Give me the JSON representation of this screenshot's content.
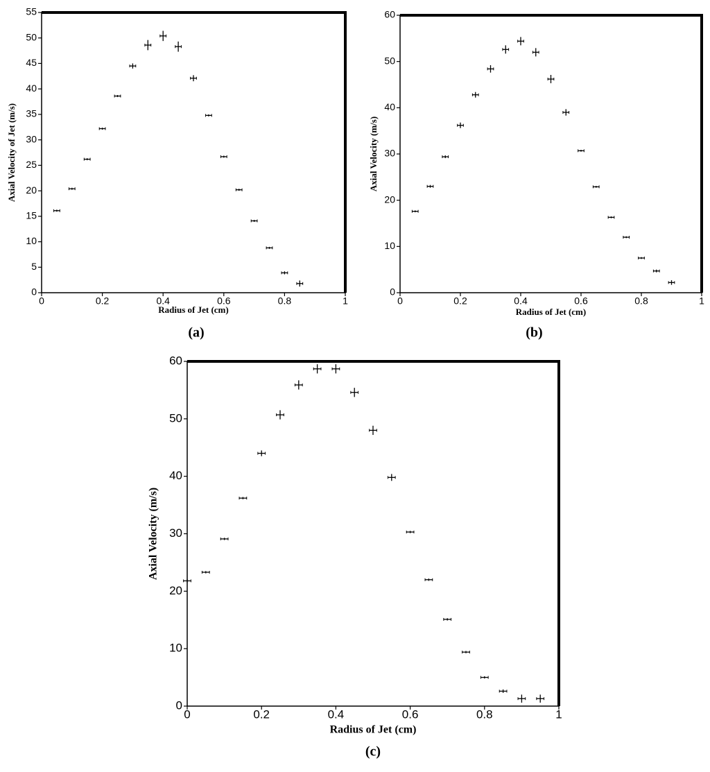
{
  "chart_data": [
    {
      "type": "scatter",
      "caption": "(a)",
      "xlabel": "Radius of Jet (cm)",
      "ylabel": "Axial Velocity of Jet (m/s)",
      "color": "#000000",
      "xlim": [
        0,
        1
      ],
      "xticks": [
        0,
        0.2,
        0.4,
        0.6,
        0.8,
        1
      ],
      "ylim": [
        0,
        55
      ],
      "yticks": [
        0,
        5,
        10,
        15,
        20,
        25,
        30,
        35,
        40,
        45,
        50,
        55
      ],
      "x": [
        0.05,
        0.1,
        0.15,
        0.2,
        0.25,
        0.3,
        0.35,
        0.4,
        0.45,
        0.5,
        0.55,
        0.6,
        0.65,
        0.7,
        0.75,
        0.8,
        0.85
      ],
      "values": [
        16.1,
        20.4,
        26.2,
        32.2,
        38.6,
        44.5,
        48.6,
        50.4,
        48.3,
        42.1,
        34.8,
        26.7,
        20.2,
        14.1,
        8.8,
        3.9,
        1.8
      ],
      "yerr": [
        0.2,
        0.2,
        0.2,
        0.2,
        0.2,
        0.5,
        1.0,
        1.0,
        1.0,
        0.6,
        0.2,
        0.2,
        0.2,
        0.2,
        0.2,
        0.3,
        0.6
      ],
      "xerr": [
        0.01,
        0.01,
        0.01,
        0.01,
        0.01,
        0.01,
        0.01,
        0.01,
        0.01,
        0.01,
        0.01,
        0.01,
        0.01,
        0.01,
        0.01,
        0.01,
        0.01
      ]
    },
    {
      "type": "scatter",
      "caption": "(b)",
      "xlabel": "Radius of Jet (cm)",
      "ylabel": "Axial Velocity (m/s)",
      "color": "#000000",
      "xlim": [
        0,
        1
      ],
      "xticks": [
        0,
        0.2,
        0.4,
        0.6,
        0.8,
        1
      ],
      "ylim": [
        0,
        60
      ],
      "yticks": [
        0,
        10,
        20,
        30,
        40,
        50,
        60
      ],
      "x": [
        0.05,
        0.1,
        0.15,
        0.2,
        0.25,
        0.3,
        0.35,
        0.4,
        0.45,
        0.5,
        0.55,
        0.6,
        0.65,
        0.7,
        0.75,
        0.8,
        0.85,
        0.9
      ],
      "values": [
        17.6,
        23.0,
        29.4,
        36.2,
        42.8,
        48.4,
        52.6,
        54.4,
        52.0,
        46.2,
        39.0,
        30.7,
        22.9,
        16.3,
        12.0,
        7.5,
        4.7,
        2.2
      ],
      "yerr": [
        0.2,
        0.3,
        0.3,
        0.6,
        0.6,
        0.8,
        0.9,
        0.9,
        0.9,
        0.9,
        0.7,
        0.2,
        0.2,
        0.2,
        0.2,
        0.2,
        0.3,
        0.5
      ],
      "xerr": [
        0.01,
        0.01,
        0.01,
        0.01,
        0.01,
        0.01,
        0.01,
        0.01,
        0.01,
        0.01,
        0.01,
        0.01,
        0.01,
        0.01,
        0.01,
        0.01,
        0.01,
        0.01
      ]
    },
    {
      "type": "scatter",
      "caption": "(c)",
      "xlabel": "Radius of Jet (cm)",
      "ylabel": "Axial Velocity (m/s)",
      "color": "#000000",
      "xlim": [
        0,
        1
      ],
      "xticks": [
        0,
        0.2,
        0.4,
        0.6,
        0.8,
        1
      ],
      "ylim": [
        0,
        60
      ],
      "yticks": [
        0,
        10,
        20,
        30,
        40,
        50,
        60
      ],
      "x": [
        0,
        0.05,
        0.1,
        0.15,
        0.2,
        0.25,
        0.3,
        0.35,
        0.4,
        0.45,
        0.5,
        0.55,
        0.6,
        0.65,
        0.7,
        0.75,
        0.8,
        0.85,
        0.9,
        0.95
      ],
      "values": [
        21.8,
        23.3,
        29.1,
        36.2,
        44.0,
        50.7,
        55.9,
        58.7,
        58.7,
        54.6,
        48.0,
        39.8,
        30.3,
        22.0,
        15.1,
        9.4,
        5.0,
        2.6,
        1.3,
        1.3
      ],
      "yerr": [
        0.3,
        0.2,
        0.2,
        0.2,
        0.5,
        0.8,
        0.8,
        0.8,
        0.8,
        0.8,
        0.8,
        0.6,
        0.2,
        0.2,
        0.2,
        0.2,
        0.2,
        0.3,
        0.7,
        0.7
      ],
      "xerr": [
        0.01,
        0.01,
        0.01,
        0.01,
        0.01,
        0.01,
        0.01,
        0.01,
        0.01,
        0.01,
        0.01,
        0.01,
        0.01,
        0.01,
        0.01,
        0.01,
        0.01,
        0.01,
        0.01,
        0.01
      ]
    }
  ]
}
